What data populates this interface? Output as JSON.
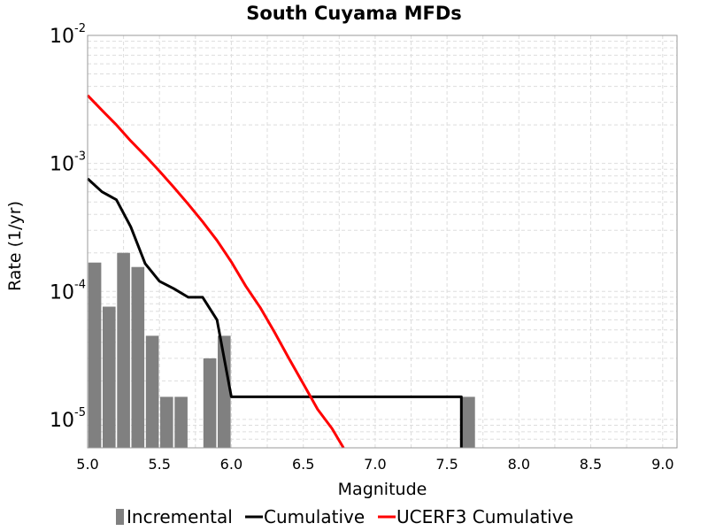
{
  "chart_data": {
    "type": "bar",
    "title": "South Cuyama MFDs",
    "xlabel": "Magnitude",
    "ylabel": "Rate (1/yr)",
    "xlim": [
      5.0,
      9.1
    ],
    "ylim": [
      6e-06,
      0.01
    ],
    "yscale": "log",
    "grid": true,
    "legend_position": "bottom",
    "x_ticks": [
      "5.0",
      "5.5",
      "6.0",
      "6.5",
      "7.0",
      "7.5",
      "8.0",
      "8.5",
      "9.0"
    ],
    "y_ticks": [
      {
        "base": "10",
        "exp": "-5"
      },
      {
        "base": "10",
        "exp": "-4"
      },
      {
        "base": "10",
        "exp": "-3"
      },
      {
        "base": "10",
        "exp": "-2"
      }
    ],
    "series": [
      {
        "name": "Incremental",
        "kind": "bar",
        "color": "#808080",
        "x": [
          5.05,
          5.15,
          5.25,
          5.35,
          5.45,
          5.55,
          5.65,
          5.85,
          5.95,
          7.65
        ],
        "values": [
          0.000168,
          7.6e-05,
          0.0002,
          0.000155,
          4.5e-05,
          1.5e-05,
          1.5e-05,
          3e-05,
          4.5e-05,
          1.5e-05
        ]
      },
      {
        "name": "Cumulative",
        "kind": "line",
        "color": "#000000",
        "x": [
          5.0,
          5.1,
          5.2,
          5.3,
          5.4,
          5.5,
          5.6,
          5.7,
          5.8,
          5.9,
          6.0,
          7.6,
          7.6
        ],
        "values": [
          0.00076,
          0.0006,
          0.00052,
          0.00032,
          0.000165,
          0.00012,
          0.000105,
          9e-05,
          9e-05,
          6e-05,
          1.5e-05,
          1.5e-05,
          6e-06
        ]
      },
      {
        "name": "UCERF3 Cumulative",
        "kind": "line",
        "color": "#ff0000",
        "x": [
          5.0,
          5.1,
          5.2,
          5.3,
          5.4,
          5.5,
          5.6,
          5.7,
          5.8,
          5.9,
          6.0,
          6.1,
          6.2,
          6.3,
          6.4,
          6.5,
          6.6,
          6.7,
          6.78
        ],
        "values": [
          0.0034,
          0.0026,
          0.002,
          0.0015,
          0.00115,
          0.00087,
          0.00065,
          0.00048,
          0.00035,
          0.00025,
          0.00017,
          0.00011,
          7.5e-05,
          4.8e-05,
          3e-05,
          1.9e-05,
          1.2e-05,
          8.5e-06,
          6e-06
        ]
      }
    ]
  }
}
